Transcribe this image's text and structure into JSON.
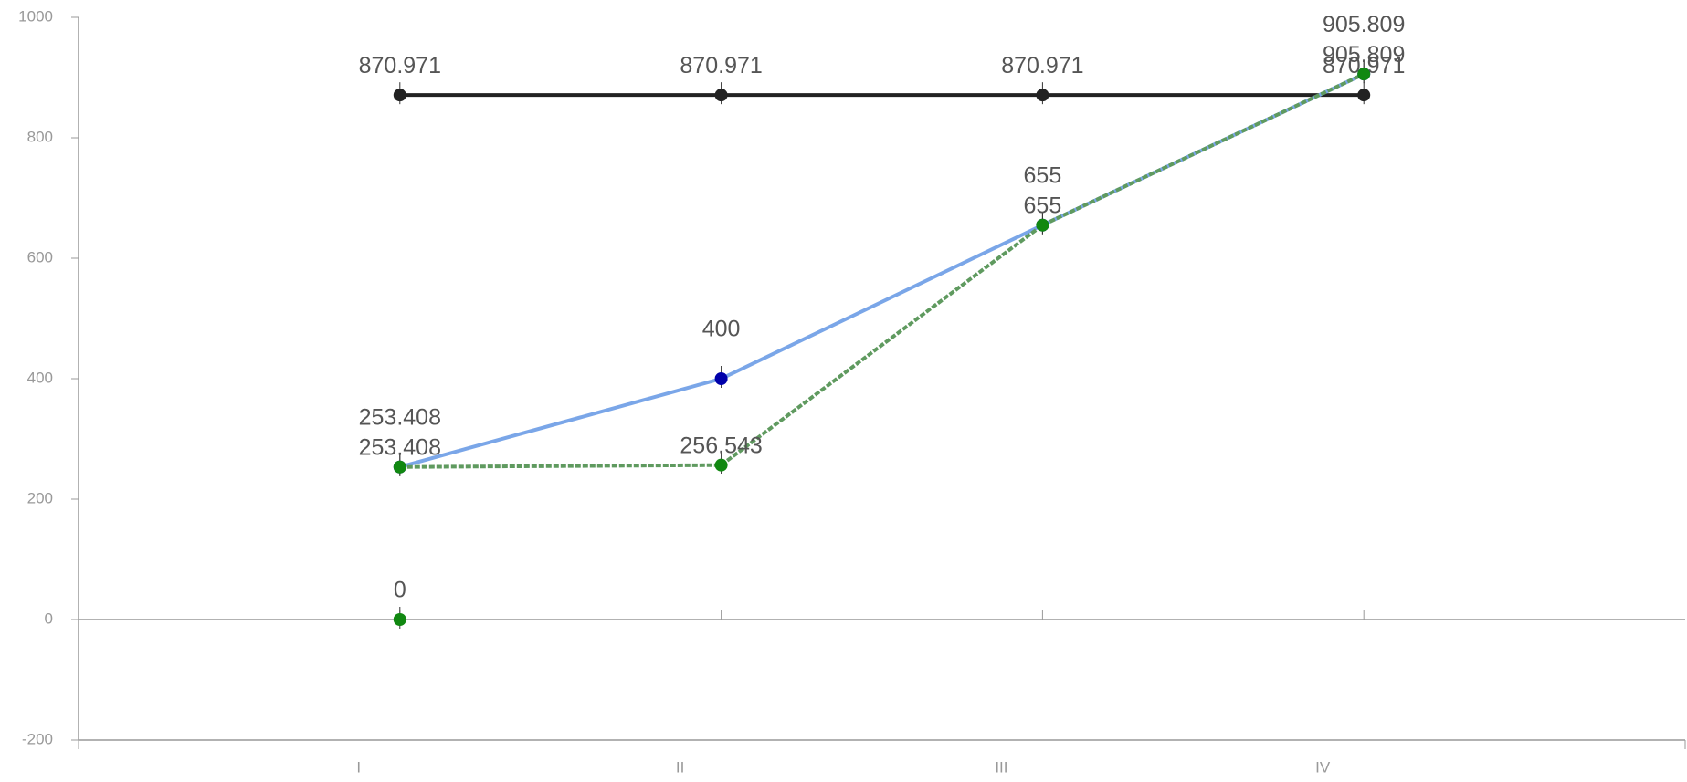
{
  "chart_data": {
    "type": "line",
    "categories": [
      "I",
      "II",
      "III",
      "IV"
    ],
    "series": [
      {
        "color": "#222222",
        "values": [
          870.971,
          870.971,
          870.971,
          870.971
        ]
      },
      {
        "color": "#7aa6e8",
        "marker_color": "#0000aa",
        "values": [
          253.408,
          400,
          655,
          905.809
        ]
      },
      {
        "color": "#5f9a5f",
        "marker_color": "#118811",
        "dashed": true,
        "values": [
          253.408,
          256.543,
          655,
          905.809
        ]
      },
      {
        "color": "#118811",
        "marker_color": "#118811",
        "values": [
          0,
          null,
          null,
          null
        ]
      }
    ],
    "ylim": [
      -200,
      1000
    ],
    "yticks": [
      -200,
      0,
      200,
      400,
      600,
      800,
      1000
    ]
  }
}
